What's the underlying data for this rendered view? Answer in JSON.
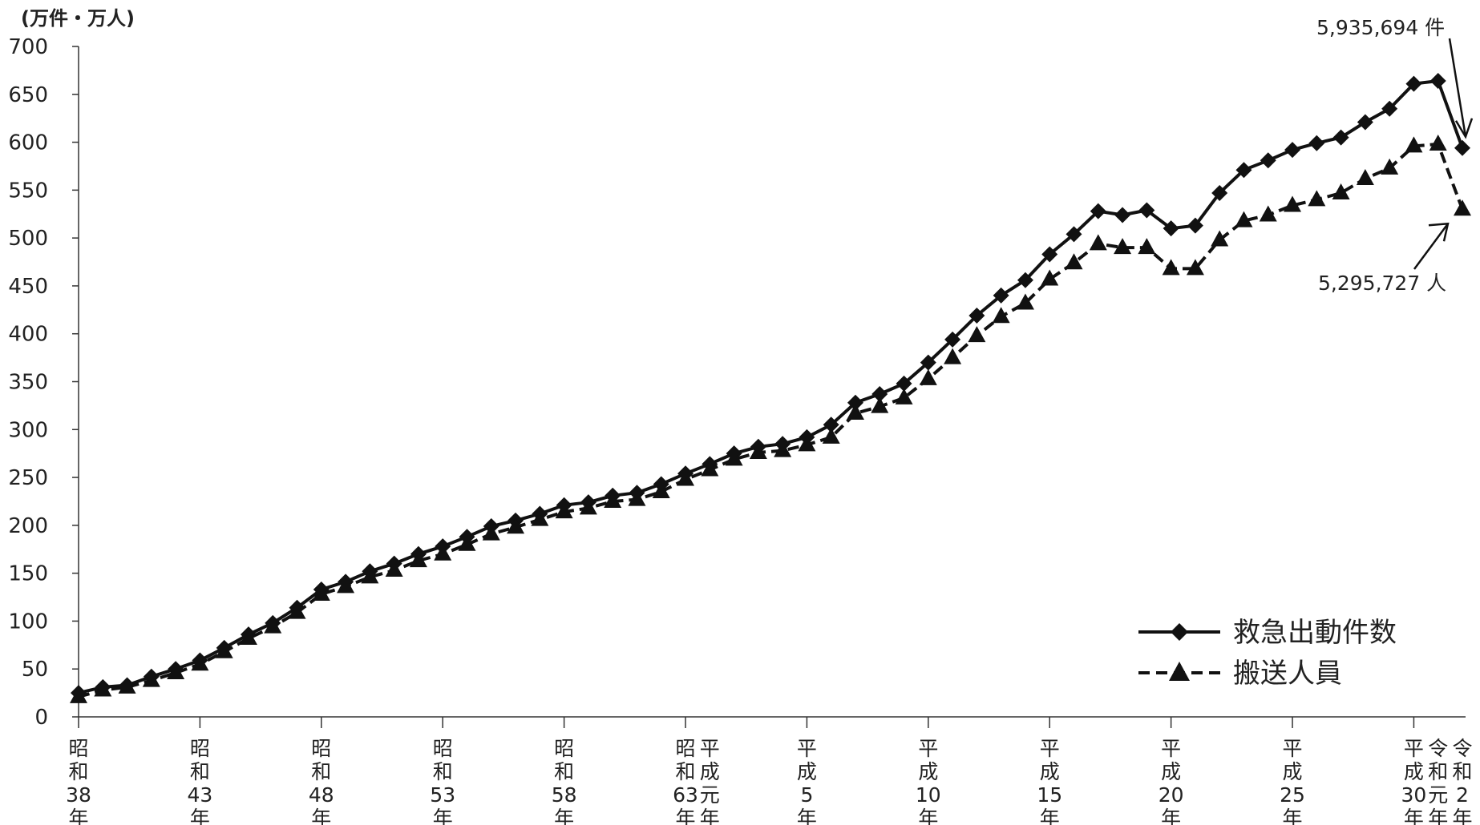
{
  "chart_data": {
    "type": "line",
    "unit_label": "(万件・万人)",
    "ylim": [
      0,
      700
    ],
    "y_ticks": [
      0,
      50,
      100,
      150,
      200,
      250,
      300,
      350,
      400,
      450,
      500,
      550,
      600,
      650,
      700
    ],
    "x_start": 1963,
    "x_end": 2020,
    "x_tick_labels": [
      {
        "year": 1963,
        "chars": [
          "昭",
          "和",
          "38",
          "年"
        ]
      },
      {
        "year": 1968,
        "chars": [
          "昭",
          "和",
          "43",
          "年"
        ]
      },
      {
        "year": 1973,
        "chars": [
          "昭",
          "和",
          "48",
          "年"
        ]
      },
      {
        "year": 1978,
        "chars": [
          "昭",
          "和",
          "53",
          "年"
        ]
      },
      {
        "year": 1983,
        "chars": [
          "昭",
          "和",
          "58",
          "年"
        ]
      },
      {
        "year": 1988,
        "chars": [
          "昭",
          "和",
          "63",
          "年"
        ]
      },
      {
        "year": 1989,
        "chars": [
          "平",
          "成",
          "元",
          "年"
        ]
      },
      {
        "year": 1993,
        "chars": [
          "平",
          "成",
          "5",
          "年"
        ]
      },
      {
        "year": 1998,
        "chars": [
          "平",
          "成",
          "10",
          "年"
        ]
      },
      {
        "year": 2003,
        "chars": [
          "平",
          "成",
          "15",
          "年"
        ]
      },
      {
        "year": 2008,
        "chars": [
          "平",
          "成",
          "20",
          "年"
        ]
      },
      {
        "year": 2013,
        "chars": [
          "平",
          "成",
          "25",
          "年"
        ]
      },
      {
        "year": 2018,
        "chars": [
          "平",
          "成",
          "30",
          "年"
        ]
      },
      {
        "year": 2019,
        "chars": [
          "令",
          "和",
          "元",
          "年"
        ]
      },
      {
        "year": 2020,
        "chars": [
          "令",
          "和",
          "2",
          "年"
        ]
      }
    ],
    "x_major_tick_years": [
      1963,
      1968,
      1973,
      1978,
      1983,
      1988,
      1993,
      1998,
      2003,
      2008,
      2013,
      2018
    ],
    "series": [
      {
        "name": "救急出動件数",
        "marker": "diamond",
        "line_style": "solid",
        "values": [
          25,
          31,
          33,
          42,
          50,
          59,
          72,
          86,
          98,
          114,
          133,
          141,
          152,
          160,
          170,
          178,
          188,
          199,
          205,
          212,
          221,
          224,
          231,
          234,
          243,
          254,
          264,
          275,
          282,
          285,
          292,
          305,
          328,
          337,
          348,
          370,
          394,
          419,
          440,
          456,
          483,
          504,
          528,
          524,
          529,
          510,
          513,
          547,
          571,
          581,
          592,
          599,
          605,
          621,
          635,
          661,
          664,
          594
        ]
      },
      {
        "name": "搬送人員",
        "marker": "triangle",
        "line_style": "dashed",
        "values": [
          21,
          28,
          31,
          38,
          46,
          55,
          68,
          82,
          94,
          109,
          128,
          136,
          146,
          153,
          163,
          170,
          180,
          191,
          198,
          206,
          214,
          218,
          225,
          227,
          235,
          248,
          258,
          269,
          276,
          278,
          284,
          292,
          317,
          324,
          333,
          353,
          375,
          398,
          418,
          432,
          457,
          474,
          494,
          490,
          490,
          468,
          468,
          498,
          518,
          524,
          534,
          540,
          547,
          562,
          573,
          596,
          598,
          530
        ]
      }
    ],
    "annotations": [
      {
        "text": "5,935,694 件",
        "series": 0
      },
      {
        "text": "5,295,727 人",
        "series": 1
      }
    ],
    "legend_position": "bottom-right",
    "grid": false
  },
  "colors": {
    "line": "#111111",
    "axis": "#333333",
    "text": "#222222"
  }
}
